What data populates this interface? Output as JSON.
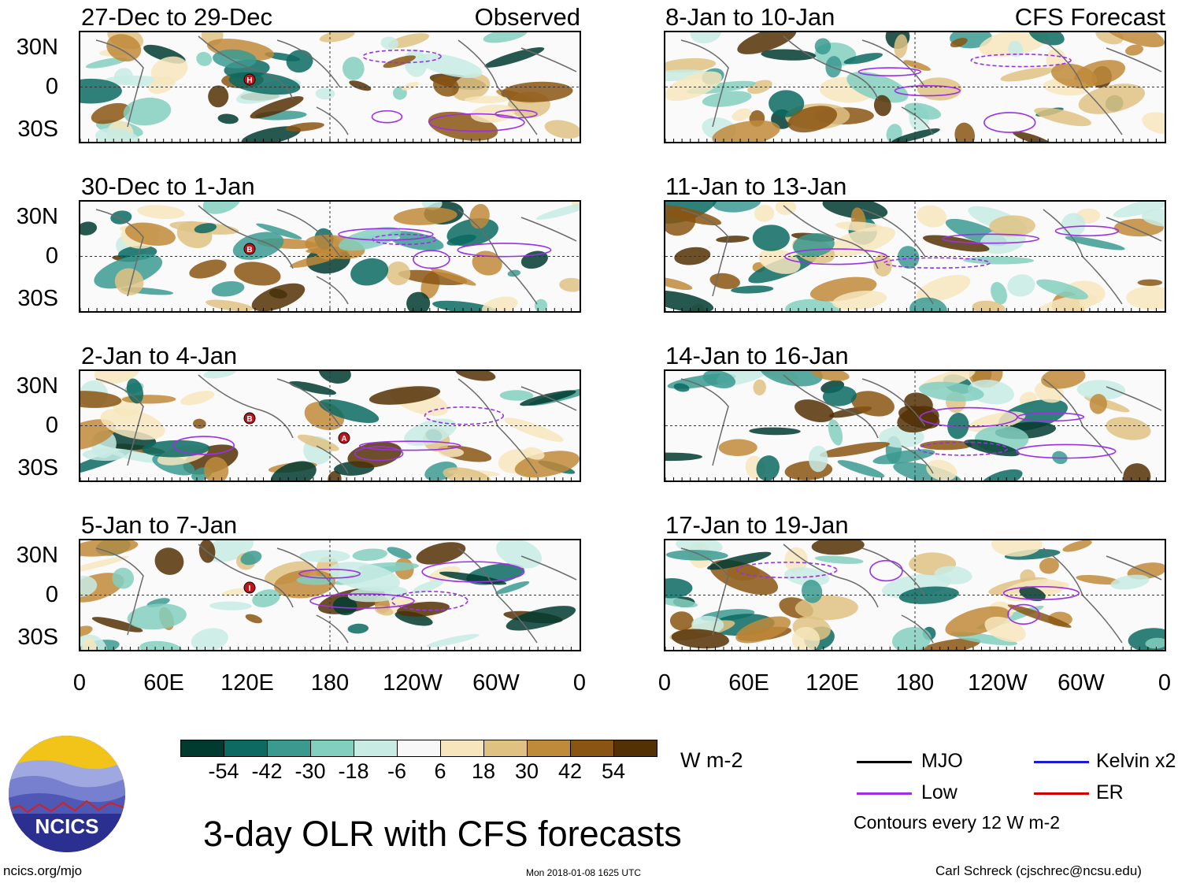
{
  "panels_left": [
    {
      "title": "27-Dec to 29-Dec",
      "tag": "Observed"
    },
    {
      "title": "30-Dec to 1-Jan",
      "tag": ""
    },
    {
      "title": "2-Jan to 4-Jan",
      "tag": ""
    },
    {
      "title": "5-Jan to 7-Jan",
      "tag": ""
    }
  ],
  "panels_right": [
    {
      "title": "8-Jan to 10-Jan",
      "tag": "CFS Forecast"
    },
    {
      "title": "11-Jan to 13-Jan",
      "tag": ""
    },
    {
      "title": "14-Jan to 16-Jan",
      "tag": ""
    },
    {
      "title": "17-Jan to 19-Jan",
      "tag": ""
    }
  ],
  "lat_labels": [
    "30N",
    "0",
    "30S"
  ],
  "lon_labels": [
    "0",
    "60E",
    "120E",
    "180",
    "120W",
    "60W",
    "0"
  ],
  "colorbar": {
    "colors": [
      "#013b30",
      "#0b6a62",
      "#3a9a90",
      "#82cfc0",
      "#c8ebe4",
      "#f8f8f8",
      "#f7e6bd",
      "#dfc282",
      "#bf8a3a",
      "#8a5512",
      "#543005"
    ],
    "labels": [
      "-54",
      "-42",
      "-30",
      "-18",
      "-6",
      "6",
      "18",
      "30",
      "42",
      "54"
    ],
    "units": "W m-2"
  },
  "legend": {
    "mjo": {
      "label": "MJO",
      "color": "#000000"
    },
    "kelvin": {
      "label": "Kelvin x2",
      "color": "#1a1adb"
    },
    "low": {
      "label": "Low",
      "color": "#9b30e6"
    },
    "er": {
      "label": "ER",
      "color": "#d40000"
    },
    "contours": "Contours every 12 W m-2"
  },
  "logo_text": "NCICS",
  "main_title": "3-day OLR with CFS forecasts",
  "footer": {
    "url": "ncics.org/mjo",
    "timestamp": "Mon 2018-01-08 1625 UTC",
    "author": "Carl Schreck (cjschrec@ncsu.edu)"
  },
  "storm_markers": [
    {
      "panel": "left-0",
      "letter": "H"
    },
    {
      "panel": "left-1",
      "letter": "B"
    },
    {
      "panel": "left-2",
      "letter": "B"
    },
    {
      "panel": "left-2",
      "letter": "A"
    },
    {
      "panel": "left-3",
      "letter": "I"
    }
  ]
}
